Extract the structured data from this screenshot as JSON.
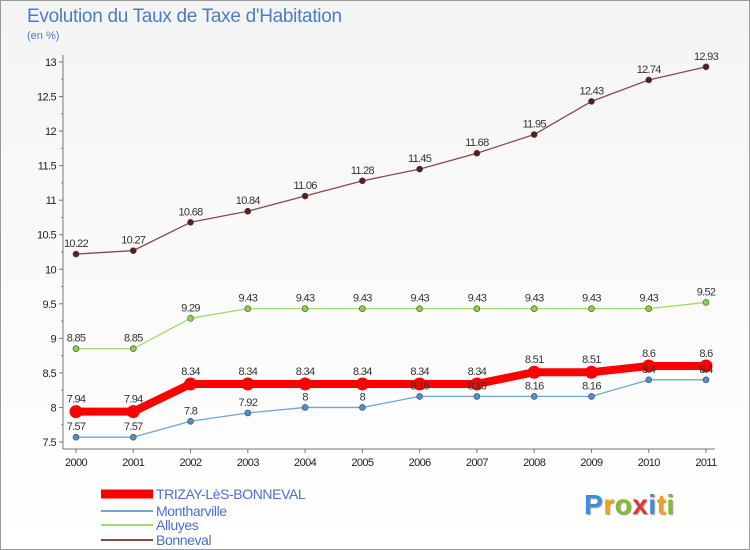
{
  "title": "Evolution du Taux de Taxe d'Habitation",
  "subtitle": "(en %)",
  "logo": {
    "text": "Proxiti",
    "letter_colors": [
      "#3d8fd6",
      "#f2a21b",
      "#7fbf2a",
      "#d93b3b",
      "#3d8fd6",
      "#f2a21b",
      "#7fbf2a"
    ]
  },
  "chart_data": {
    "type": "line",
    "x": [
      "2000",
      "2001",
      "2002",
      "2003",
      "2004",
      "2005",
      "2006",
      "2007",
      "2008",
      "2009",
      "2010",
      "2011"
    ],
    "ylim": [
      7.5,
      13
    ],
    "yticks": [
      "7.5",
      "8",
      "8.5",
      "9",
      "9.5",
      "10",
      "10.5",
      "11",
      "11.5",
      "12",
      "12.5",
      "13"
    ],
    "grid": false,
    "legend_position": "bottom-left",
    "series": [
      {
        "name": "TRIZAY-LèS-BONNEVAL",
        "color": "#ff0000",
        "values": [
          7.94,
          7.94,
          8.34,
          8.34,
          8.34,
          8.34,
          8.34,
          8.34,
          8.51,
          8.51,
          8.6,
          8.6
        ],
        "labels": [
          "7.94",
          "7.94",
          "8.34",
          "8.34",
          "8.34",
          "8.34",
          "8.34",
          "8.34",
          "8.51",
          "8.51",
          "8.6",
          "8.6"
        ]
      },
      {
        "name": "Montharville",
        "color": "#6ea6d6",
        "values": [
          7.57,
          7.57,
          7.8,
          7.92,
          8,
          8,
          8.16,
          8.16,
          8.16,
          8.16,
          8.4,
          8.4
        ],
        "labels": [
          "7.57",
          "7.57",
          "7.8",
          "7.92",
          "8",
          "8",
          "8.16",
          "8.16",
          "8.16",
          "8.16",
          "8.4",
          "8.4"
        ]
      },
      {
        "name": "Alluyes",
        "color": "#9fdc6a",
        "values": [
          8.85,
          8.85,
          9.29,
          9.43,
          9.43,
          9.43,
          9.43,
          9.43,
          9.43,
          9.43,
          9.43,
          9.52
        ],
        "labels": [
          "8.85",
          "8.85",
          "9.29",
          "9.43",
          "9.43",
          "9.43",
          "9.43",
          "9.43",
          "9.43",
          "9.43",
          "9.43",
          "9.52"
        ]
      },
      {
        "name": "Bonneval",
        "color": "#8a4a4a",
        "values": [
          10.22,
          10.27,
          10.68,
          10.84,
          11.06,
          11.28,
          11.45,
          11.68,
          11.95,
          12.43,
          12.74,
          12.93
        ],
        "labels": [
          "10.22",
          "10.27",
          "10.68",
          "10.84",
          "11.06",
          "11.28",
          "11.45",
          "11.68",
          "11.95",
          "12.43",
          "12.74",
          "12.93"
        ]
      }
    ]
  }
}
